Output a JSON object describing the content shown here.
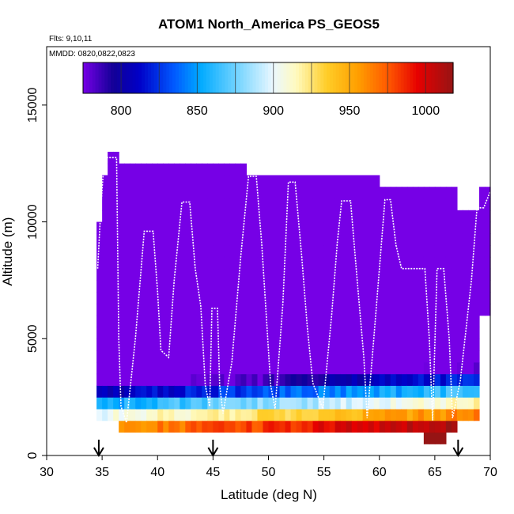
{
  "chart_data": {
    "type": "heatmap",
    "title": "ATOM1 North_America PS_GEOS5",
    "annotations": [
      "Flts: 9,10,11",
      "MMDD: 0820,0822,0823"
    ],
    "xlabel": "Latitude (deg N)",
    "ylabel": "Altitude (m)",
    "xlim": [
      30,
      70
    ],
    "ylim": [
      0,
      17500
    ],
    "xticks": [
      "30",
      "35",
      "40",
      "45",
      "50",
      "55",
      "60",
      "65",
      "70"
    ],
    "yticks": [
      "0",
      "5000",
      "10000",
      "15000"
    ],
    "colorbar": {
      "ticks": [
        "800",
        "850",
        "900",
        "950",
        "1000"
      ],
      "range": [
        775,
        1018
      ]
    },
    "arrows_latitude": [
      34.7,
      45,
      67.1
    ],
    "flight_track": [
      [
        34.6,
        8000
      ],
      [
        34.9,
        10700
      ],
      [
        35.2,
        12750
      ],
      [
        36.3,
        12750
      ],
      [
        36.5,
        5000
      ],
      [
        36.7,
        2100
      ],
      [
        37.2,
        1400
      ],
      [
        38.0,
        5000
      ],
      [
        38.8,
        9600
      ],
      [
        39.6,
        9600
      ],
      [
        40.0,
        7000
      ],
      [
        40.3,
        4500
      ],
      [
        41.0,
        4200
      ],
      [
        41.5,
        7500
      ],
      [
        42.2,
        10850
      ],
      [
        42.9,
        10850
      ],
      [
        43.4,
        8000
      ],
      [
        43.9,
        6400
      ],
      [
        44.3,
        3000
      ],
      [
        44.7,
        2100
      ],
      [
        44.9,
        6300
      ],
      [
        45.4,
        6300
      ],
      [
        45.6,
        3000
      ],
      [
        45.9,
        1800
      ],
      [
        46.7,
        4000
      ],
      [
        47.5,
        8500
      ],
      [
        48.2,
        11950
      ],
      [
        48.9,
        11950
      ],
      [
        49.4,
        9000
      ],
      [
        49.8,
        6000
      ],
      [
        50.2,
        3000
      ],
      [
        50.6,
        2000
      ],
      [
        51.3,
        6500
      ],
      [
        51.8,
        11700
      ],
      [
        52.4,
        11700
      ],
      [
        53.0,
        8500
      ],
      [
        53.5,
        5500
      ],
      [
        54.0,
        3100
      ],
      [
        54.9,
        2000
      ],
      [
        55.7,
        6000
      ],
      [
        56.2,
        9100
      ],
      [
        56.6,
        10900
      ],
      [
        57.4,
        10900
      ],
      [
        58.0,
        7500
      ],
      [
        58.6,
        4200
      ],
      [
        58.9,
        1600
      ],
      [
        59.5,
        5000
      ],
      [
        60.5,
        10950
      ],
      [
        61.0,
        10950
      ],
      [
        61.5,
        9000
      ],
      [
        62.0,
        8000
      ],
      [
        64.1,
        8000
      ],
      [
        64.5,
        5000
      ],
      [
        64.8,
        1500
      ],
      [
        65.2,
        8000
      ],
      [
        65.8,
        8000
      ],
      [
        66.3,
        5000
      ],
      [
        66.6,
        1600
      ],
      [
        67.3,
        3200
      ],
      [
        68.3,
        7500
      ],
      [
        68.8,
        10600
      ],
      [
        69.4,
        10600
      ],
      [
        70.0,
        11300
      ]
    ],
    "pressure_grid": {
      "lat_step": 0.5,
      "alt_step": 500,
      "columns": [
        {
          "lat": 34.5,
          "bottom": 1500,
          "top": 10000
        },
        {
          "lat": 35,
          "bottom": 1500,
          "top": 12000
        },
        {
          "lat": 35.5,
          "bottom": 1500,
          "top": 13000
        },
        {
          "lat": 36,
          "bottom": 1500,
          "top": 13000
        },
        {
          "lat": 36.5,
          "bottom": 1000,
          "top": 12500
        },
        {
          "lat": 37,
          "bottom": 1000,
          "top": 12500
        },
        {
          "lat": 40,
          "bottom": 1000,
          "top": 12500
        },
        {
          "lat": 45,
          "bottom": 1000,
          "top": 12500
        },
        {
          "lat": 48,
          "bottom": 1000,
          "top": 12000
        },
        {
          "lat": 55,
          "bottom": 1000,
          "top": 12000
        },
        {
          "lat": 59,
          "bottom": 1000,
          "top": 12000
        },
        {
          "lat": 60,
          "bottom": 1000,
          "top": 11500
        },
        {
          "lat": 64,
          "bottom": 500,
          "top": 11500
        },
        {
          "lat": 66,
          "bottom": 1000,
          "top": 11500
        },
        {
          "lat": 67,
          "bottom": 1500,
          "top": 10500
        },
        {
          "lat": 68,
          "bottom": 1500,
          "top": 10500
        },
        {
          "lat": 69,
          "bottom": 6000,
          "top": 11500
        }
      ]
    }
  }
}
